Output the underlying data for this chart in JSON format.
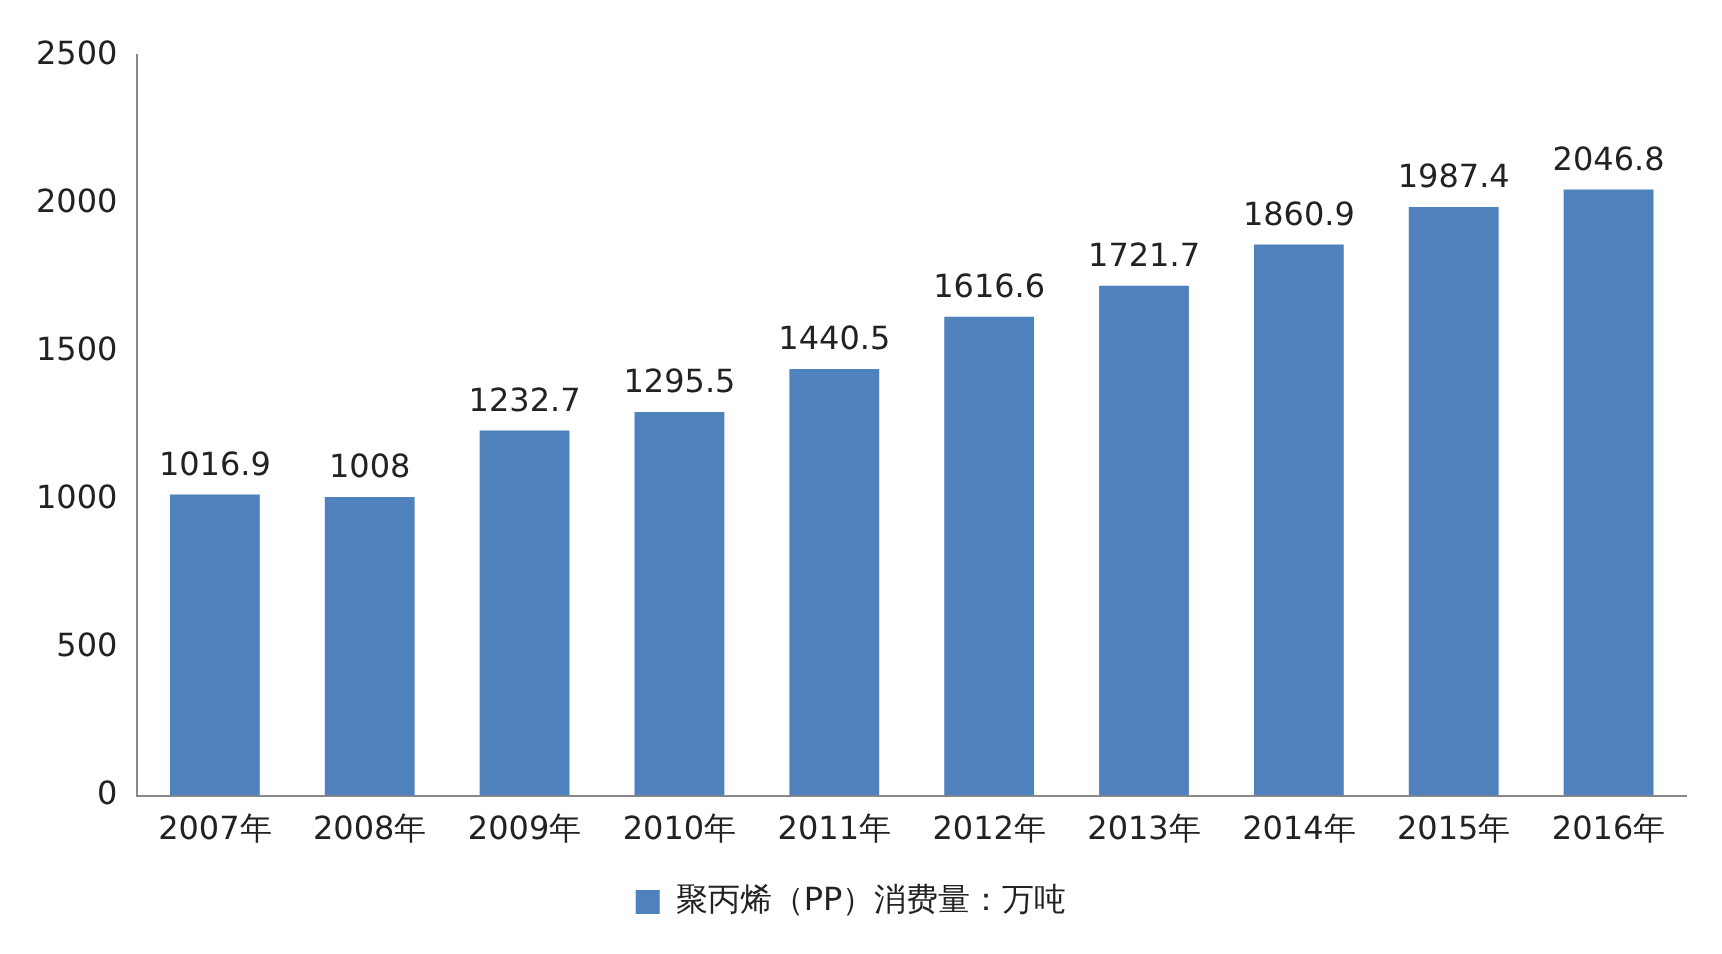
{
  "chart_data": {
    "type": "bar",
    "categories": [
      "2007年",
      "2008年",
      "2009年",
      "2010年",
      "2011年",
      "2012年",
      "2013年",
      "2014年",
      "2015年",
      "2016年"
    ],
    "series": [
      {
        "name": "聚丙烯（PP）消费量：万吨",
        "color": "#4f81bd",
        "values": [
          1016.9,
          1008,
          1232.7,
          1295.5,
          1440.5,
          1616.6,
          1721.7,
          1860.9,
          1987.4,
          2046.8
        ]
      }
    ],
    "ylim": [
      0,
      2500
    ],
    "yticks": [
      0,
      500,
      1000,
      1500,
      2000,
      2500
    ],
    "grid": false,
    "legend": "bottom",
    "data_labels": true
  }
}
